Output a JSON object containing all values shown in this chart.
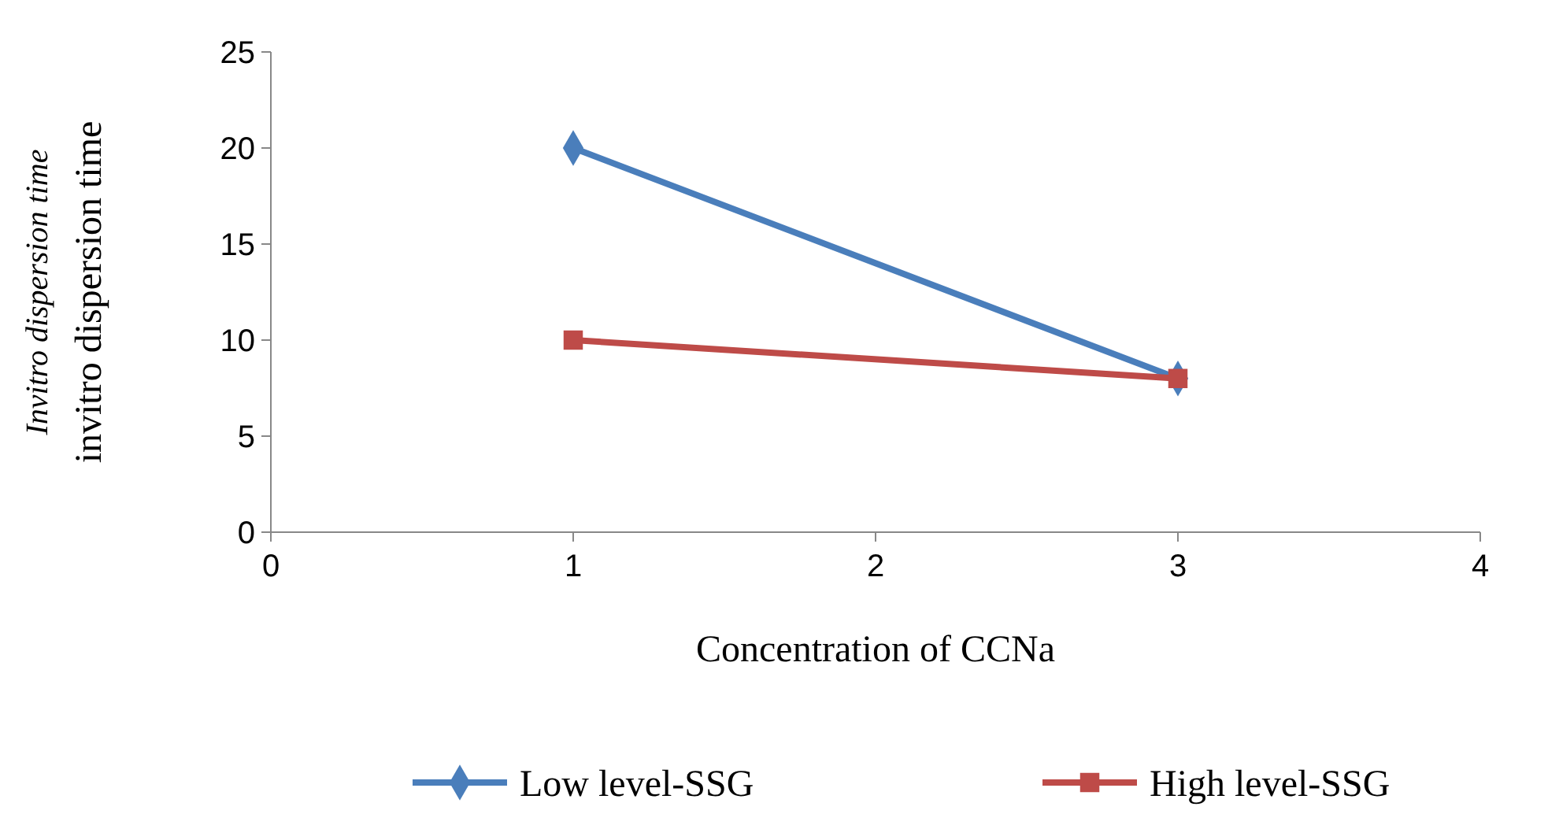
{
  "chart_data": {
    "type": "line",
    "xlabel": "Concentration of CCNa",
    "ylabel": "invitro dispersion time",
    "annotations": [
      "Invitro dispersion time"
    ],
    "x": [
      1,
      3
    ],
    "xlim": [
      0,
      4
    ],
    "xticks": [
      0,
      1,
      2,
      3,
      4
    ],
    "ylim": [
      0,
      25
    ],
    "yticks": [
      0,
      5,
      10,
      15,
      20,
      25
    ],
    "grid": false,
    "legend": "bottom",
    "line_style": "solid",
    "series": [
      {
        "name": "Low level-SSG",
        "color": "#4a7ebb",
        "marker": "diamond",
        "values": [
          20,
          8
        ]
      },
      {
        "name": "High level-SSG",
        "color": "#be4b48",
        "marker": "square",
        "values": [
          10,
          8
        ]
      }
    ]
  }
}
